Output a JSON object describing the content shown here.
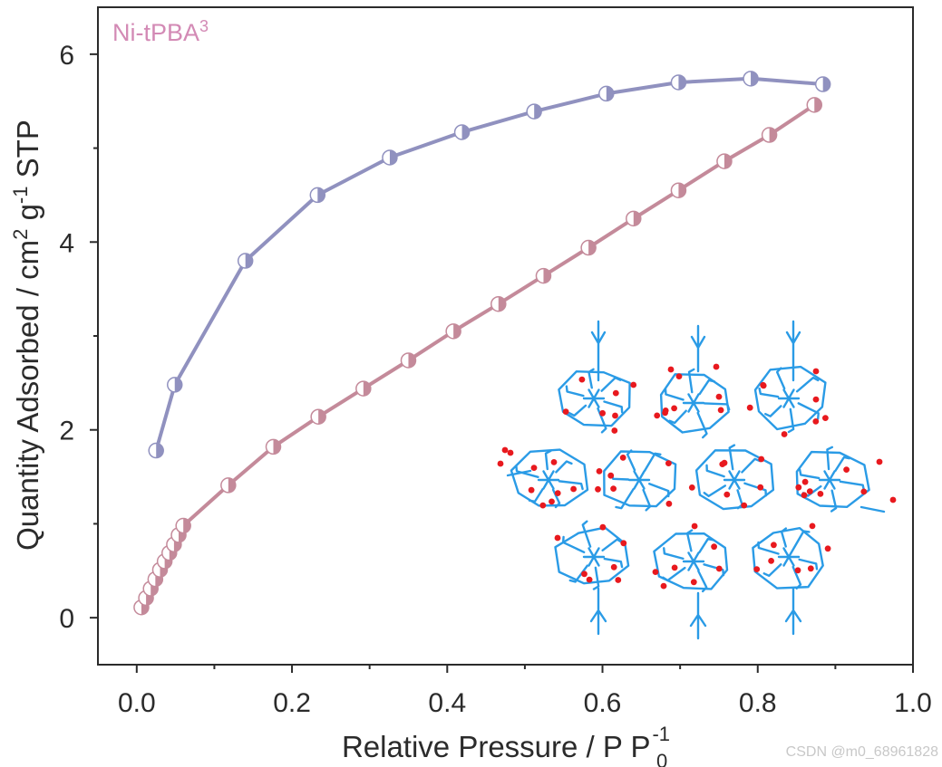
{
  "chart_data": {
    "type": "line",
    "title": "",
    "panel_label": "Ni-tPBA",
    "panel_label_sup": "3",
    "xlabel": "Relative Pressure / P P",
    "xlabel_sub": "0",
    "xlabel_sup": "-1",
    "ylabel_parts": [
      "Quantity Adsorbed / cm",
      "2",
      " g",
      "-1",
      " STP"
    ],
    "xlim": [
      -0.05,
      1.0
    ],
    "ylim": [
      -0.5,
      6.5
    ],
    "xticks": [
      0.0,
      0.2,
      0.4,
      0.6,
      0.8,
      1.0
    ],
    "xtick_labels": [
      "0.0",
      "0.2",
      "0.4",
      "0.6",
      "0.8",
      "1.0"
    ],
    "yticks": [
      0,
      2,
      4,
      6
    ],
    "ytick_labels": [
      "0",
      "2",
      "4",
      "6"
    ],
    "grid": false,
    "series": [
      {
        "role": "adsorption",
        "color": "#c48a9a",
        "x": [
          0.006,
          0.012,
          0.018,
          0.024,
          0.03,
          0.036,
          0.042,
          0.048,
          0.054,
          0.06,
          0.118,
          0.176,
          0.234,
          0.292,
          0.35,
          0.408,
          0.466,
          0.524,
          0.582,
          0.64,
          0.698,
          0.757,
          0.815,
          0.873
        ],
        "y": [
          0.11,
          0.21,
          0.31,
          0.41,
          0.51,
          0.6,
          0.69,
          0.78,
          0.88,
          0.98,
          1.41,
          1.82,
          2.14,
          2.44,
          2.74,
          3.05,
          3.34,
          3.64,
          3.94,
          4.25,
          4.55,
          4.86,
          5.14,
          5.46
        ]
      },
      {
        "role": "desorption",
        "color": "#9091bf",
        "x": [
          0.025,
          0.049,
          0.14,
          0.233,
          0.326,
          0.419,
          0.512,
          0.605,
          0.698,
          0.791,
          0.884
        ],
        "y": [
          1.78,
          2.48,
          3.8,
          4.5,
          4.9,
          5.17,
          5.39,
          5.58,
          5.7,
          5.74,
          5.68
        ]
      }
    ]
  },
  "watermark": "CSDN @m0_68961828",
  "colors": {
    "axis": "#2b2b2b",
    "panel_label": "#d38ab5",
    "structure_framework": "#2a9be6",
    "structure_oxygen": "#e8191e"
  },
  "inset_image": "crystal-structure-illustration"
}
